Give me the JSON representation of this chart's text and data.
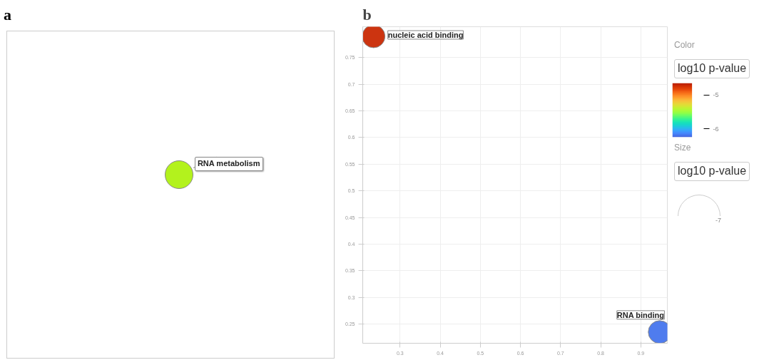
{
  "chart_data": [
    {
      "type": "other",
      "title": "a",
      "annotations": [
        "RNA metabolism"
      ],
      "color": "#b3f21d"
    },
    {
      "type": "scatter",
      "title": "b",
      "x": [
        0.234,
        0.947
      ],
      "values": [
        0.79,
        0.235
      ],
      "cvalues": [
        -4.7,
        -6.2
      ],
      "clim": [
        -6.25,
        -4.64
      ],
      "cticks": [
        -6,
        -5
      ],
      "clabel": "log10 p-value",
      "xlim": [
        0.207,
        0.966
      ],
      "ylim": [
        0.214,
        0.808
      ],
      "xticks": [
        0.3,
        0.4,
        0.5,
        0.6,
        0.7,
        0.8,
        0.9
      ],
      "yticks": [
        0.25,
        0.3,
        0.35,
        0.4,
        0.45,
        0.5,
        0.55,
        0.6,
        0.65,
        0.7,
        0.75
      ],
      "grid": true,
      "marker": "circle",
      "annotations": [
        {
          "text": "nucleic acid binding",
          "x": 0.234,
          "y": 0.79
        },
        {
          "text": "RNA binding",
          "x": 0.947,
          "y": 0.235
        },
        "Color",
        "Size",
        "log10 p-value",
        "-7"
      ]
    }
  ]
}
